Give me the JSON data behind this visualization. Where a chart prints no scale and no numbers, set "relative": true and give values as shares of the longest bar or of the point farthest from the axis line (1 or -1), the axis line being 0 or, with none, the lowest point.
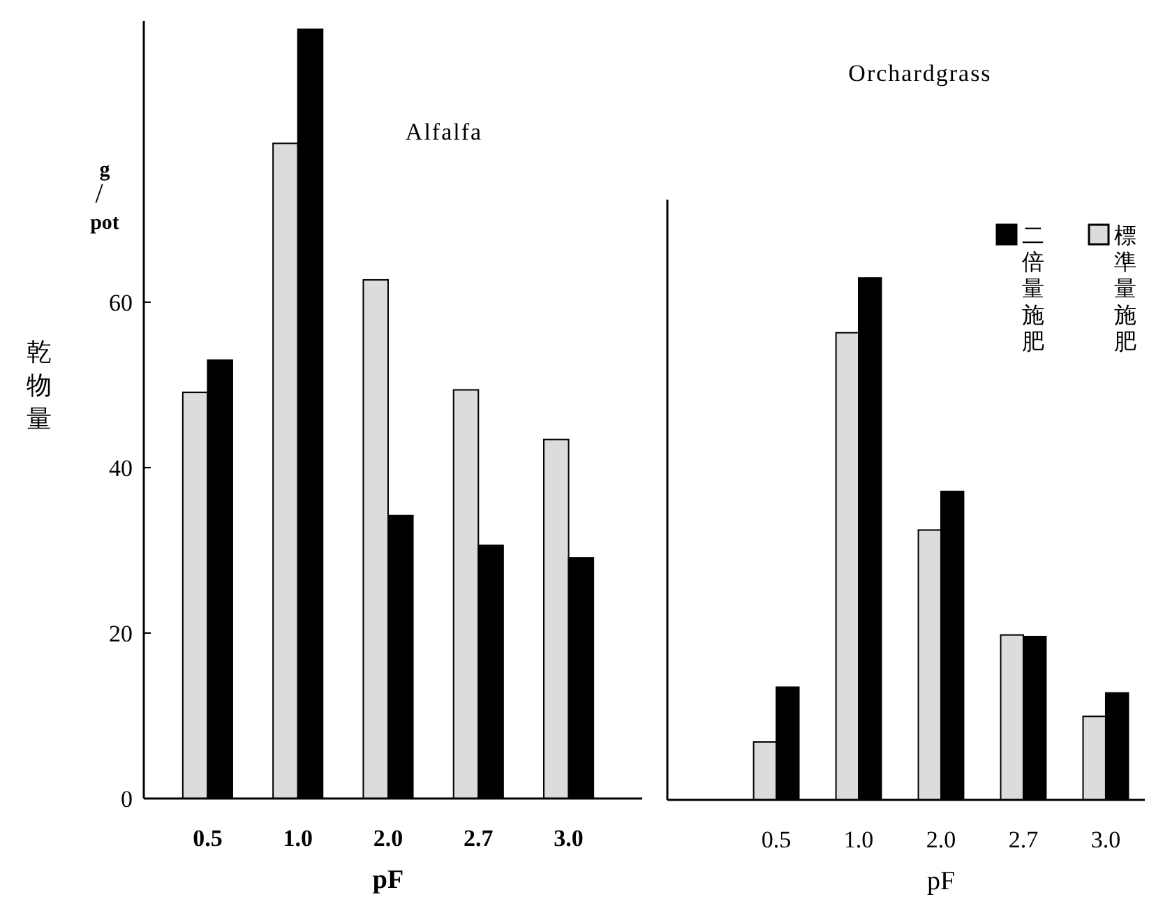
{
  "chart_data": [
    {
      "type": "bar",
      "title": "Alfalfa",
      "xlabel": "pF",
      "ylabel": "乾物量",
      "annotations": [
        "g/pot"
      ],
      "categories": [
        "0.5",
        "1.0",
        "2.0",
        "2.7",
        "3.0"
      ],
      "series": [
        {
          "color": "#dcdcdc",
          "values": [
            49.1,
            79.2,
            62.7,
            49.4,
            43.4
          ]
        },
        {
          "color": "#000000",
          "values": [
            53.0,
            93,
            34.2,
            30.6,
            29.1
          ]
        }
      ],
      "ylim": [
        0,
        94
      ],
      "yticks": [
        0,
        20,
        40,
        60
      ],
      "grid": false,
      "legend": false
    },
    {
      "type": "bar",
      "title": "Orchardgrass",
      "xlabel": "pF",
      "categories": [
        "0.5",
        "1.0",
        "2.0",
        "2.7",
        "3.0"
      ],
      "relative": true,
      "series": [
        {
          "name": "標準量施肥",
          "color": "#dcdcdc",
          "values": [
            0.111,
            0.895,
            0.517,
            0.316,
            0.16
          ]
        },
        {
          "name": "二倍量施肥",
          "color": "#000000",
          "values": [
            0.216,
            1,
            0.591,
            0.313,
            0.205
          ]
        }
      ],
      "grid": false,
      "legend": "top right"
    }
  ]
}
